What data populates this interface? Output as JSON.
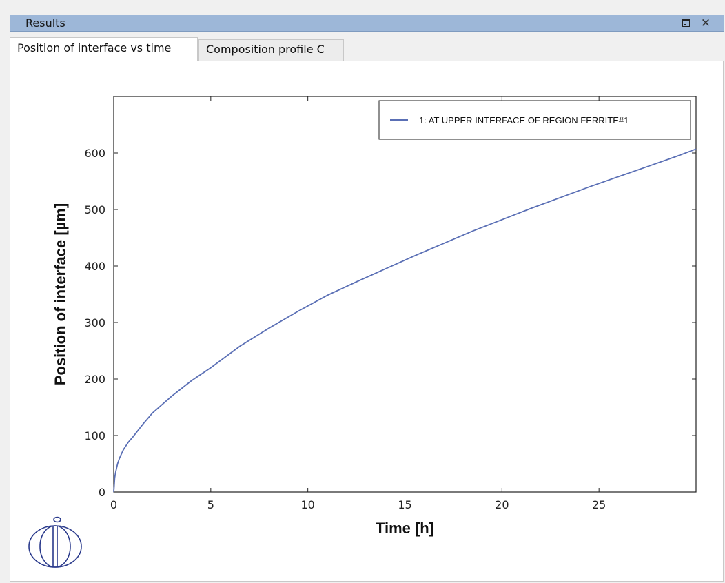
{
  "window": {
    "title": "Results"
  },
  "tabs": [
    {
      "label": "Position of interface vs time",
      "active": true
    },
    {
      "label": "Composition profile C",
      "active": false
    }
  ],
  "icons": {
    "restore": "restore-window-icon",
    "close": "close-icon",
    "logo": "thermo-calc-logo-icon"
  },
  "chart_data": {
    "type": "line",
    "title": "",
    "xlabel": "Time [h]",
    "ylabel": "Position of interface [µm]",
    "xlim": [
      0,
      30
    ],
    "ylim": [
      0,
      700
    ],
    "xticks": [
      0,
      5,
      10,
      15,
      20,
      25
    ],
    "yticks": [
      0,
      100,
      200,
      300,
      400,
      500,
      600
    ],
    "grid": false,
    "legend_position": "top-right",
    "series": [
      {
        "name": "1:  AT UPPER INTERFACE OF REGION FERRITE#1",
        "color": "#5a6fb5",
        "x": [
          0,
          0.02,
          0.05,
          0.1,
          0.2,
          0.3,
          0.5,
          0.75,
          1,
          1.5,
          2,
          3,
          4,
          5,
          6.5,
          8,
          9.5,
          11,
          12.5,
          14,
          15.5,
          17,
          18.5,
          20,
          21.5,
          23,
          24.5,
          26,
          27.5,
          29,
          30
        ],
        "y": [
          0,
          10,
          25,
          35,
          50,
          60,
          75,
          88,
          98,
          120,
          140,
          170,
          197,
          220,
          258,
          290,
          320,
          348,
          372,
          395,
          418,
          440,
          462,
          482,
          502,
          521,
          540,
          558,
          576,
          594,
          607
        ]
      }
    ]
  }
}
